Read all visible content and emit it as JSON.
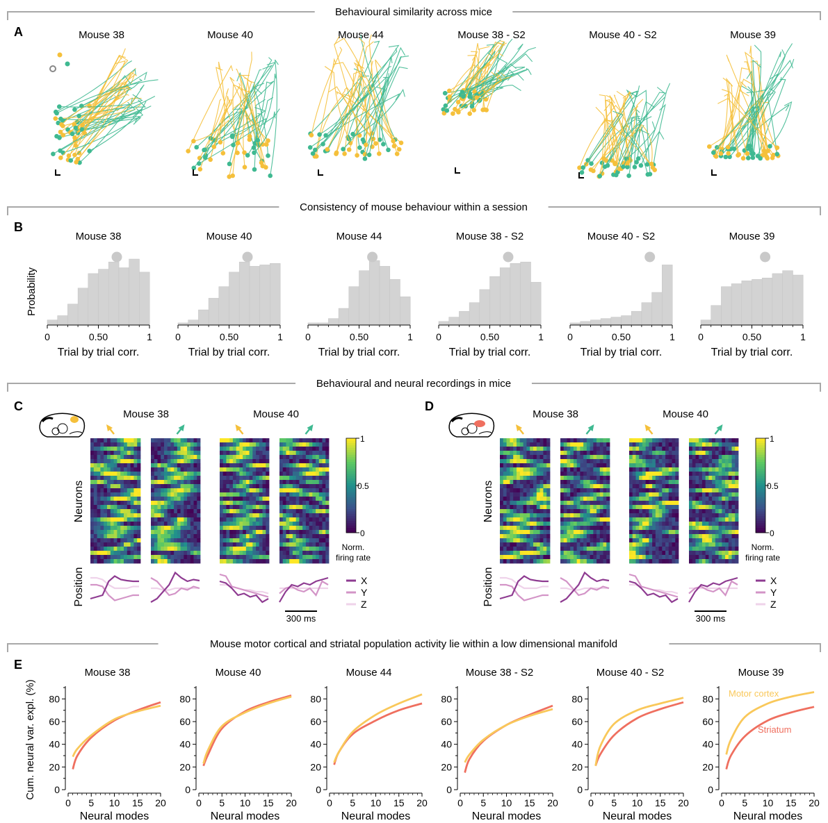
{
  "colors": {
    "yellow": "#f5c03b",
    "green": "#3fb991",
    "hist": "#d3d3d3",
    "motor": "#f9c85a",
    "striatum": "#ef6f5f",
    "x_trace": "#8e3b91",
    "y_trace": "#d394c7",
    "z_trace": "#efd3ea",
    "section_line": "#a8a8a8"
  },
  "sections": {
    "A": {
      "letter": "A",
      "title": "Behavioural similarity across mice"
    },
    "B": {
      "letter": "B",
      "title": "Consistency of mouse behaviour within a session"
    },
    "CD": {
      "letters": [
        "C",
        "D"
      ],
      "title": "Behavioural and neural recordings in mice"
    },
    "E": {
      "letter": "E",
      "title": "Mouse motor cortical and striatal population activity lie within a low dimensional manifold"
    }
  },
  "mice": [
    "Mouse 38",
    "Mouse 40",
    "Mouse 44",
    "Mouse 38 - S2",
    "Mouse 40 - S2",
    "Mouse 39"
  ],
  "panel_B": {
    "ylabel": "Probability",
    "xlabel": "Trial by trial corr.",
    "xticks": [
      "0",
      "0.50",
      "1"
    ],
    "bins": [
      0,
      0.1,
      0.2,
      0.3,
      0.4,
      0.5,
      0.6,
      0.7,
      0.8,
      0.9,
      1.0
    ],
    "histograms": [
      {
        "mouse": "Mouse 38",
        "probs": [
          0.03,
          0.06,
          0.14,
          0.25,
          0.35,
          0.38,
          0.43,
          0.39,
          0.45,
          0.36
        ],
        "median": 0.68
      },
      {
        "mouse": "Mouse 40",
        "probs": [
          0.01,
          0.03,
          0.1,
          0.18,
          0.26,
          0.36,
          0.43,
          0.4,
          0.41,
          0.42
        ],
        "median": 0.68
      },
      {
        "mouse": "Mouse 44",
        "probs": [
          0.01,
          0.01,
          0.04,
          0.11,
          0.26,
          0.37,
          0.44,
          0.4,
          0.31,
          0.19
        ],
        "median": 0.63
      },
      {
        "mouse": "Mouse 38 - S2",
        "probs": [
          0.02,
          0.05,
          0.09,
          0.15,
          0.24,
          0.33,
          0.39,
          0.42,
          0.43,
          0.29
        ],
        "median": 0.68
      },
      {
        "mouse": "Mouse 40 - S2",
        "probs": [
          0.01,
          0.02,
          0.03,
          0.04,
          0.05,
          0.06,
          0.09,
          0.15,
          0.22,
          0.41
        ],
        "median": 0.78
      },
      {
        "mouse": "Mouse 39",
        "probs": [
          0.03,
          0.13,
          0.26,
          0.28,
          0.3,
          0.31,
          0.32,
          0.35,
          0.37,
          0.34
        ],
        "median": 0.63
      }
    ]
  },
  "panel_C": {
    "region": "motor cortex",
    "mice": [
      "Mouse 38",
      "Mouse 40"
    ],
    "ylabel_neurons": "Neurons",
    "ylabel_position": "Position",
    "colorbar": {
      "ticks": [
        "1",
        "0.5",
        "0"
      ],
      "label_line1": "Norm.",
      "label_line2": "firing rate"
    },
    "legend": [
      "X",
      "Y",
      "Z"
    ],
    "scalebar": "300 ms"
  },
  "panel_D": {
    "region": "striatum",
    "mice": [
      "Mouse 38",
      "Mouse 40"
    ],
    "ylabel_neurons": "Neurons",
    "ylabel_position": "Position",
    "colorbar": {
      "ticks": [
        "1",
        "0.5",
        "0"
      ],
      "label_line1": "Norm.",
      "label_line2": "firing rate"
    },
    "legend": [
      "X",
      "Y",
      "Z"
    ],
    "scalebar": "300 ms"
  },
  "panel_E": {
    "ylabel": "Cum. neural var. expl. (%)",
    "xlabel": "Neural modes",
    "xticks": [
      "0",
      "5",
      "10",
      "15",
      "20"
    ],
    "yticks": [
      "0",
      "20",
      "40",
      "60",
      "80"
    ],
    "xlim": [
      0,
      20
    ],
    "ylim": [
      0,
      90
    ],
    "series_labels": {
      "motor": "Motor cortex",
      "striatum": "Striatum"
    },
    "chart_data": [
      {
        "type": "line",
        "title": "Mouse 38",
        "x": [
          1,
          2,
          5,
          10,
          15,
          20
        ],
        "series": [
          {
            "name": "Motor cortex",
            "values": [
              29,
              36,
              48,
              62,
              69,
              74
            ]
          },
          {
            "name": "Striatum",
            "values": [
              18,
              30,
              46,
              61,
              70,
              77
            ]
          }
        ]
      },
      {
        "type": "line",
        "title": "Mouse 40",
        "x": [
          1,
          2,
          5,
          10,
          15,
          20
        ],
        "series": [
          {
            "name": "Motor cortex",
            "values": [
              23,
              35,
              56,
              68,
              76,
              82
            ]
          },
          {
            "name": "Striatum",
            "values": [
              21,
              31,
              54,
              69,
              77,
              83
            ]
          }
        ]
      },
      {
        "type": "line",
        "title": "Mouse 44",
        "x": [
          1,
          2,
          5,
          10,
          15,
          20
        ],
        "series": [
          {
            "name": "Motor cortex",
            "values": [
              24,
              33,
              51,
              66,
              76,
              84
            ]
          },
          {
            "name": "Striatum",
            "values": [
              22,
              33,
              49,
              61,
              70,
              76
            ]
          }
        ]
      },
      {
        "type": "line",
        "title": "Mouse 38 - S2",
        "x": [
          1,
          2,
          5,
          10,
          15,
          20
        ],
        "series": [
          {
            "name": "Motor cortex",
            "values": [
              24,
              31,
              44,
              57,
              65,
              71
            ]
          },
          {
            "name": "Striatum",
            "values": [
              15,
              27,
              43,
              57,
              66,
              74
            ]
          }
        ]
      },
      {
        "type": "line",
        "title": "Mouse 40 - S2",
        "x": [
          1,
          2,
          5,
          10,
          15,
          20
        ],
        "series": [
          {
            "name": "Motor cortex",
            "values": [
              21,
              38,
              58,
              70,
              76,
              81
            ]
          },
          {
            "name": "Striatum",
            "values": [
              21,
              31,
              48,
              63,
              71,
              77
            ]
          }
        ]
      },
      {
        "type": "line",
        "title": "Mouse 39",
        "x": [
          1,
          2,
          5,
          10,
          15,
          20
        ],
        "series": [
          {
            "name": "Motor cortex",
            "values": [
              31,
              44,
              64,
              76,
              82,
              86
            ]
          },
          {
            "name": "Striatum",
            "values": [
              18,
              30,
              47,
              61,
              68,
              73
            ]
          }
        ]
      }
    ]
  }
}
